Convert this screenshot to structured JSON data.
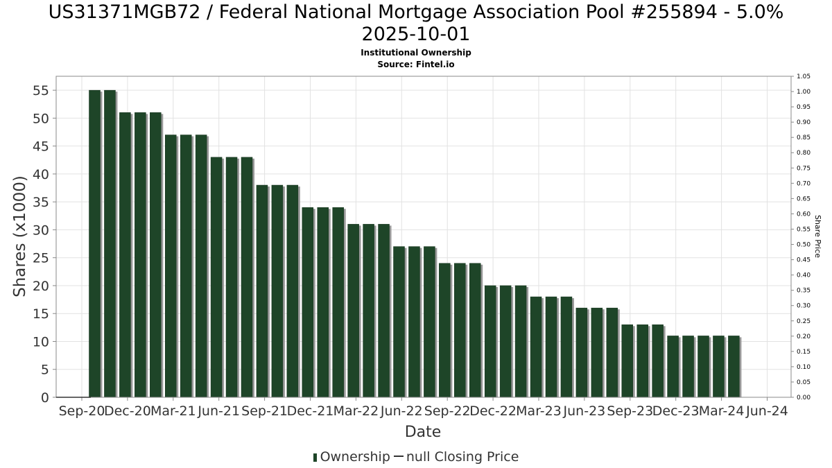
{
  "chart_data": {
    "type": "bar",
    "title_line1": "US31371MGB72 / Federal National Mortgage Association Pool #255894 - 5.0%",
    "title_line2": "2025-10-01",
    "subtitle_line1": "Institutional Ownership",
    "subtitle_line2": "Source: Fintel.io",
    "xlabel": "Date",
    "ylabel": "Shares (x1000)",
    "y2label": "Share Price",
    "ylim": [
      0,
      57.5
    ],
    "yticks": [
      0,
      5,
      10,
      15,
      20,
      25,
      30,
      35,
      40,
      45,
      50,
      55
    ],
    "y2lim": [
      0,
      1.05
    ],
    "y2ticks": [
      "0.00",
      "0.05",
      "0.10",
      "0.15",
      "0.20",
      "0.25",
      "0.30",
      "0.35",
      "0.40",
      "0.45",
      "0.50",
      "0.55",
      "0.60",
      "0.65",
      "0.70",
      "0.75",
      "0.80",
      "0.85",
      "0.90",
      "0.95",
      "1.00",
      "1.05"
    ],
    "xticks": [
      "Sep-20",
      "Dec-20",
      "Mar-21",
      "Jun-21",
      "Sep-21",
      "Dec-21",
      "Mar-22",
      "Jun-22",
      "Sep-22",
      "Dec-22",
      "Mar-23",
      "Jun-23",
      "Sep-23",
      "Dec-23",
      "Mar-24",
      "Jun-24"
    ],
    "grid": true,
    "legend_position": "bottom",
    "series": [
      {
        "name": "Ownership",
        "color": "#1e4528",
        "values": [
          55,
          55,
          51,
          51,
          51,
          47,
          47,
          47,
          43,
          43,
          43,
          38,
          38,
          38,
          34,
          34,
          34,
          31,
          31,
          31,
          27,
          27,
          27,
          24,
          24,
          24,
          20,
          20,
          20,
          18,
          18,
          18,
          16,
          16,
          16,
          13,
          13,
          13,
          11,
          11,
          11,
          11,
          11
        ]
      }
    ],
    "legend": [
      "Ownership",
      "null Closing Price"
    ]
  }
}
